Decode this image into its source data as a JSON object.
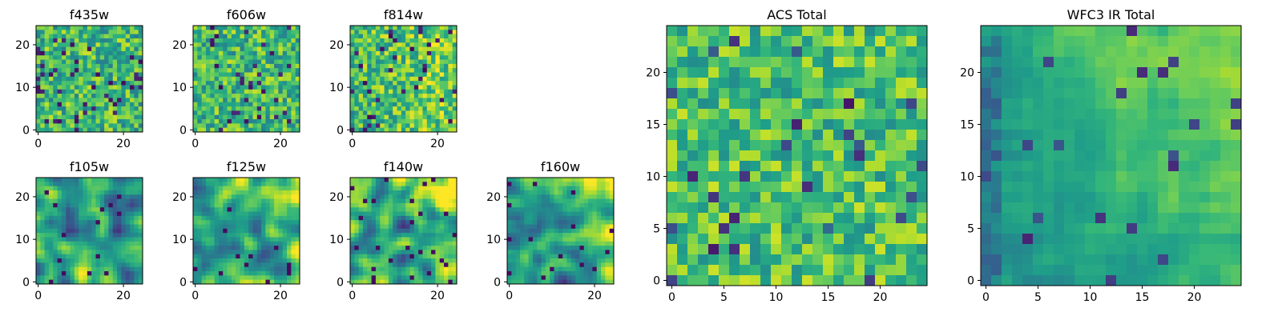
{
  "chart_data": [
    {
      "type": "heatmap",
      "title": "f435w",
      "colormap": "viridis",
      "grid_size": [
        25,
        25
      ],
      "x_ticks": [
        "0",
        "20"
      ],
      "y_ticks": [
        "0",
        "10",
        "20"
      ],
      "texture": "fine uniform noise with scattered dark pixels"
    },
    {
      "type": "heatmap",
      "title": "f606w",
      "colormap": "viridis",
      "grid_size": [
        25,
        25
      ],
      "x_ticks": [
        "0",
        "20"
      ],
      "y_ticks": [
        "0",
        "10",
        "20"
      ],
      "texture": "fine uniform noise with scattered dark pixels"
    },
    {
      "type": "heatmap",
      "title": "f814w",
      "colormap": "viridis",
      "grid_size": [
        25,
        25
      ],
      "x_ticks": [
        "0",
        "20"
      ],
      "y_ticks": [
        "0",
        "10",
        "20"
      ],
      "texture": "fine noise, brighter toward the right edge"
    },
    {
      "type": "heatmap",
      "title": "f105w",
      "colormap": "viridis",
      "grid_size": [
        25,
        25
      ],
      "x_ticks": [
        "0",
        "20"
      ],
      "y_ticks": [
        "0",
        "10",
        "20"
      ],
      "texture": "smooth correlated blobs"
    },
    {
      "type": "heatmap",
      "title": "f125w",
      "colormap": "viridis",
      "grid_size": [
        25,
        25
      ],
      "x_ticks": [
        "0",
        "20"
      ],
      "y_ticks": [
        "0",
        "10",
        "20"
      ],
      "texture": "smooth correlated blobs, bright upper-right corner"
    },
    {
      "type": "heatmap",
      "title": "f140w",
      "colormap": "viridis",
      "grid_size": [
        25,
        25
      ],
      "x_ticks": [
        "0",
        "20"
      ],
      "y_ticks": [
        "0",
        "10",
        "20"
      ],
      "texture": "smooth correlated blobs, bright upper-right corner"
    },
    {
      "type": "heatmap",
      "title": "f160w",
      "colormap": "viridis",
      "grid_size": [
        25,
        25
      ],
      "x_ticks": [
        "0",
        "20"
      ],
      "y_ticks": [
        "0",
        "10",
        "20"
      ],
      "texture": "smooth correlated blobs, bright upper-right corner"
    },
    {
      "type": "heatmap",
      "title": "ACS Total",
      "colormap": "viridis",
      "grid_size": [
        25,
        25
      ],
      "x_ticks": [
        "0",
        "5",
        "10",
        "15",
        "20"
      ],
      "y_ticks": [
        "0",
        "5",
        "10",
        "15",
        "20"
      ],
      "texture": "pixel noise, mostly green to yellow with scattered dark pixels"
    },
    {
      "type": "heatmap",
      "title": "WFC3 IR Total",
      "colormap": "viridis",
      "grid_size": [
        25,
        25
      ],
      "x_ticks": [
        "0",
        "5",
        "10",
        "15",
        "20"
      ],
      "y_ticks": [
        "0",
        "5",
        "10",
        "15",
        "20"
      ],
      "texture": "smooth gradient, bright yellow upper-right, dark left edge"
    }
  ]
}
